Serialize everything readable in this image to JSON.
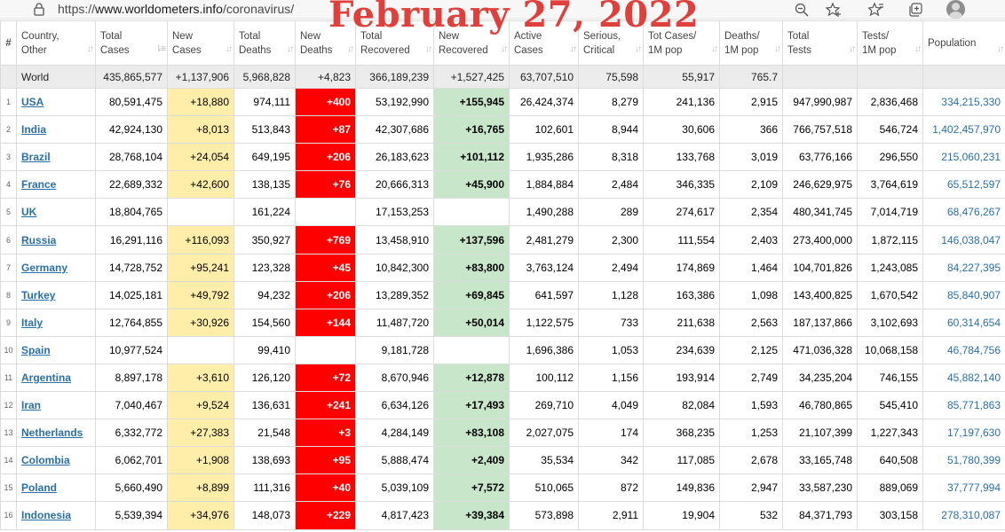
{
  "browser": {
    "url_scheme": "https://",
    "url_host": "www.worldometers.info",
    "url_path": "/coronavirus/"
  },
  "overlay": {
    "date": "February 27, 2022"
  },
  "colors": {
    "new_cases_bg": "#ffeeaa",
    "new_deaths_bg": "#ff0000",
    "new_recovered_bg": "#c8e6c9",
    "link": "#2a6fa8",
    "overlay_text": "#e0403b"
  },
  "table": {
    "columns": [
      {
        "l1": "#",
        "l2": ""
      },
      {
        "l1": "Country,",
        "l2": "Other"
      },
      {
        "l1": "Total",
        "l2": "Cases"
      },
      {
        "l1": "New",
        "l2": "Cases"
      },
      {
        "l1": "Total",
        "l2": "Deaths"
      },
      {
        "l1": "New",
        "l2": "Deaths"
      },
      {
        "l1": "Total",
        "l2": "Recovered"
      },
      {
        "l1": "New",
        "l2": "Recovered"
      },
      {
        "l1": "Active",
        "l2": "Cases"
      },
      {
        "l1": "Serious,",
        "l2": "Critical"
      },
      {
        "l1": "Tot Cases/",
        "l2": "1M pop"
      },
      {
        "l1": "Deaths/",
        "l2": "1M pop"
      },
      {
        "l1": "Total",
        "l2": "Tests"
      },
      {
        "l1": "Tests/",
        "l2": "1M pop"
      },
      {
        "l1": "Population",
        "l2": ""
      }
    ],
    "world": [
      "",
      "World",
      "435,865,577",
      "+1,137,906",
      "5,968,828",
      "+4,823",
      "366,189,239",
      "+1,527,425",
      "63,707,510",
      "75,598",
      "55,917",
      "765.7",
      "",
      "",
      ""
    ],
    "rows": [
      [
        "1",
        "USA",
        "80,591,475",
        "+18,880",
        "974,111",
        "+400",
        "53,192,990",
        "+155,945",
        "26,424,374",
        "8,279",
        "241,136",
        "2,915",
        "947,990,987",
        "2,836,468",
        "334,215,330"
      ],
      [
        "2",
        "India",
        "42,924,130",
        "+8,013",
        "513,843",
        "+87",
        "42,307,686",
        "+16,765",
        "102,601",
        "8,944",
        "30,606",
        "366",
        "766,757,518",
        "546,724",
        "1,402,457,970"
      ],
      [
        "3",
        "Brazil",
        "28,768,104",
        "+24,054",
        "649,195",
        "+206",
        "26,183,623",
        "+101,112",
        "1,935,286",
        "8,318",
        "133,768",
        "3,019",
        "63,776,166",
        "296,550",
        "215,060,231"
      ],
      [
        "4",
        "France",
        "22,689,332",
        "+42,600",
        "138,135",
        "+76",
        "20,666,313",
        "+45,900",
        "1,884,884",
        "2,484",
        "346,335",
        "2,109",
        "246,629,975",
        "3,764,619",
        "65,512,597"
      ],
      [
        "5",
        "UK",
        "18,804,765",
        "",
        "161,224",
        "",
        "17,153,253",
        "",
        "1,490,288",
        "289",
        "274,617",
        "2,354",
        "480,341,745",
        "7,014,719",
        "68,476,267"
      ],
      [
        "6",
        "Russia",
        "16,291,116",
        "+116,093",
        "350,927",
        "+769",
        "13,458,910",
        "+137,596",
        "2,481,279",
        "2,300",
        "111,554",
        "2,403",
        "273,400,000",
        "1,872,115",
        "146,038,047"
      ],
      [
        "7",
        "Germany",
        "14,728,752",
        "+95,241",
        "123,328",
        "+45",
        "10,842,300",
        "+83,800",
        "3,763,124",
        "2,494",
        "174,869",
        "1,464",
        "104,701,826",
        "1,243,085",
        "84,227,395"
      ],
      [
        "8",
        "Turkey",
        "14,025,181",
        "+49,792",
        "94,232",
        "+206",
        "13,289,352",
        "+69,845",
        "641,597",
        "1,128",
        "163,386",
        "1,098",
        "143,400,825",
        "1,670,542",
        "85,840,907"
      ],
      [
        "9",
        "Italy",
        "12,764,855",
        "+30,926",
        "154,560",
        "+144",
        "11,487,720",
        "+50,014",
        "1,122,575",
        "733",
        "211,638",
        "2,563",
        "187,137,866",
        "3,102,693",
        "60,314,654"
      ],
      [
        "10",
        "Spain",
        "10,977,524",
        "",
        "99,410",
        "",
        "9,181,728",
        "",
        "1,696,386",
        "1,053",
        "234,639",
        "2,125",
        "471,036,328",
        "10,068,158",
        "46,784,756"
      ],
      [
        "11",
        "Argentina",
        "8,897,178",
        "+3,610",
        "126,120",
        "+72",
        "8,670,946",
        "+12,878",
        "100,112",
        "1,156",
        "193,914",
        "2,749",
        "34,235,204",
        "746,155",
        "45,882,140"
      ],
      [
        "12",
        "Iran",
        "7,040,467",
        "+9,524",
        "136,631",
        "+241",
        "6,634,126",
        "+17,493",
        "269,710",
        "4,049",
        "82,084",
        "1,593",
        "46,780,865",
        "545,410",
        "85,771,863"
      ],
      [
        "13",
        "Netherlands",
        "6,332,772",
        "+27,383",
        "21,548",
        "+3",
        "4,284,149",
        "+83,108",
        "2,027,075",
        "174",
        "368,235",
        "1,253",
        "21,107,399",
        "1,227,343",
        "17,197,630"
      ],
      [
        "14",
        "Colombia",
        "6,062,701",
        "+1,908",
        "138,693",
        "+95",
        "5,888,474",
        "+2,409",
        "35,534",
        "342",
        "117,085",
        "2,678",
        "33,165,748",
        "640,508",
        "51,780,399"
      ],
      [
        "15",
        "Poland",
        "5,660,490",
        "+8,899",
        "111,316",
        "+40",
        "5,039,109",
        "+7,572",
        "510,065",
        "872",
        "149,836",
        "2,947",
        "33,587,230",
        "889,069",
        "37,777,994"
      ],
      [
        "16",
        "Indonesia",
        "5,539,394",
        "+34,976",
        "148,073",
        "+229",
        "4,817,423",
        "+39,384",
        "573,898",
        "2,911",
        "19,904",
        "532",
        "84,371,793",
        "303,158",
        "278,310,087"
      ]
    ]
  }
}
